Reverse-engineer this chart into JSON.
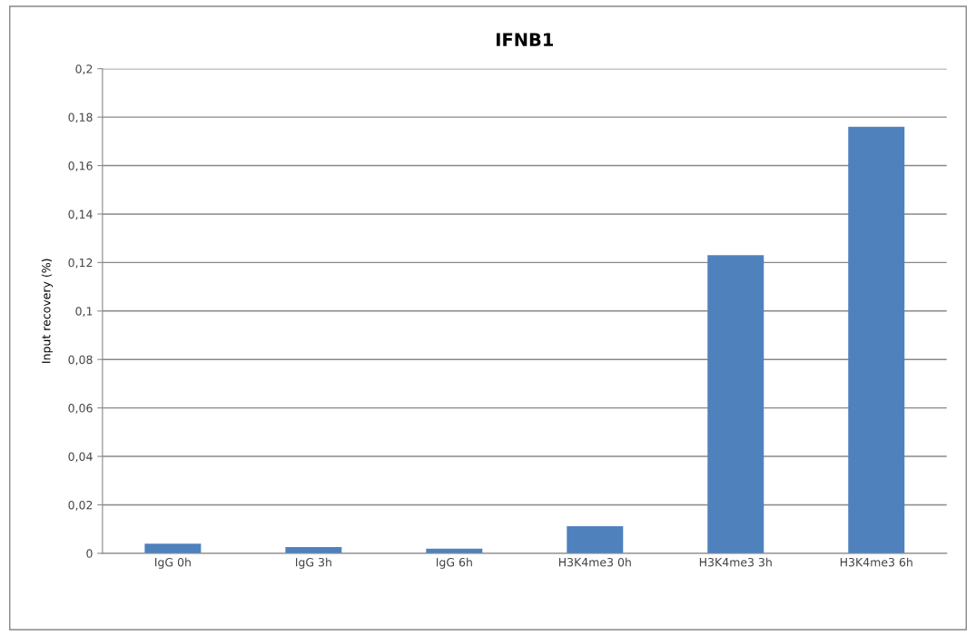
{
  "chart_data": {
    "type": "bar",
    "title": "IFNB1",
    "ylabel": "Input recovery (%)",
    "categories": [
      "IgG 0h",
      "IgG 3h",
      "IgG 6h",
      "H3K4me3 0h",
      "H3K4me3 3h",
      "H3K4me3 6h"
    ],
    "values": [
      0.004,
      0.0026,
      0.0019,
      0.0112,
      0.123,
      0.176
    ],
    "color": "#4f81bd",
    "ylim": [
      0,
      0.2
    ],
    "yticks": [
      {
        "value": 0,
        "label": "0"
      },
      {
        "value": 0.02,
        "label": "0,02"
      },
      {
        "value": 0.04,
        "label": "0,04"
      },
      {
        "value": 0.06,
        "label": "0,06"
      },
      {
        "value": 0.08,
        "label": "0,08"
      },
      {
        "value": 0.1,
        "label": "0,1"
      },
      {
        "value": 0.12,
        "label": "0,12"
      },
      {
        "value": 0.14,
        "label": "0,14"
      },
      {
        "value": 0.16,
        "label": "0,16"
      },
      {
        "value": 0.18,
        "label": "0,18"
      },
      {
        "value": 0.2,
        "label": "0,2"
      }
    ],
    "grid": "y"
  }
}
